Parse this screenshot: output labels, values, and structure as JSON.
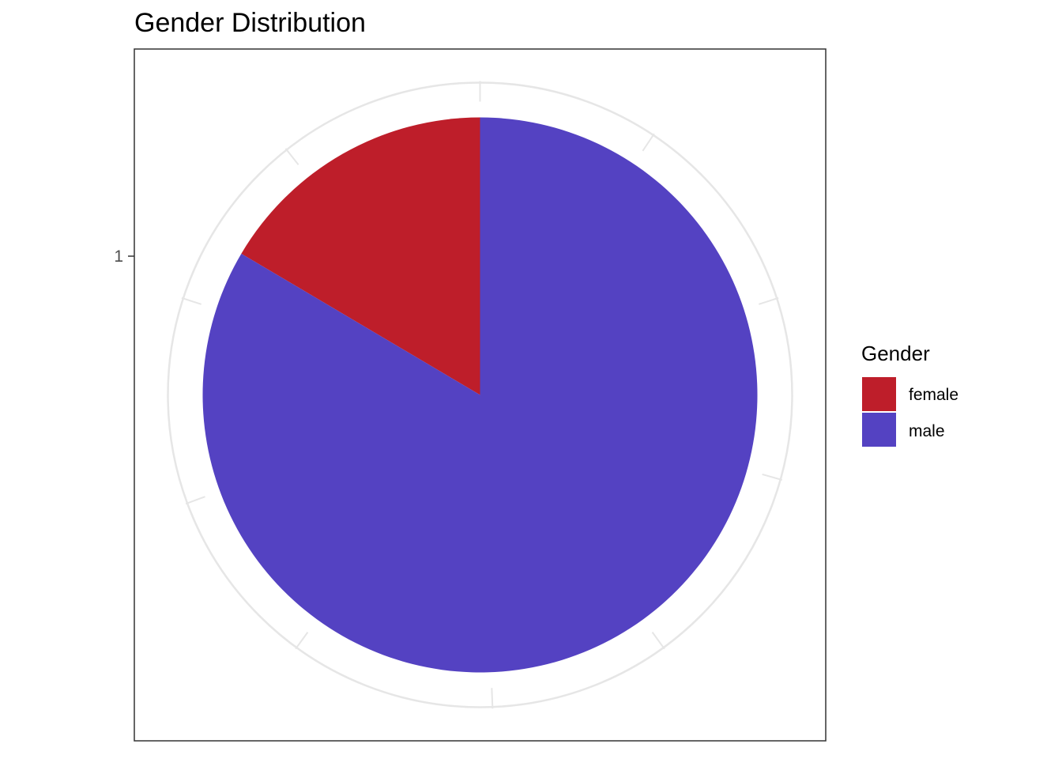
{
  "chart_data": {
    "type": "pie",
    "title": "Gender Distribution",
    "y_tick_labels": [
      "1"
    ],
    "legend": {
      "title": "Gender",
      "position": "right"
    },
    "slices": [
      {
        "label": "female",
        "value": 0.165,
        "color": "#BE1E2A"
      },
      {
        "label": "male",
        "value": 0.835,
        "color": "#5442C2"
      }
    ],
    "grid": true
  }
}
